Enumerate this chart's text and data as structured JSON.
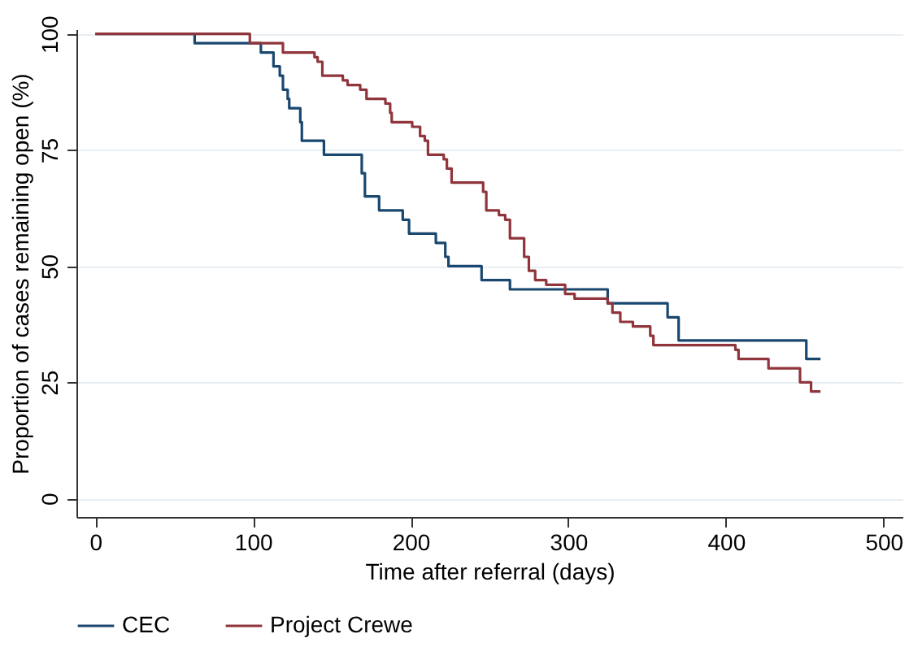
{
  "chart_data": {
    "type": "step",
    "xlabel": "Time after referral (days)",
    "ylabel": "Proportion of cases remaining open (%)",
    "xlim": [
      -12,
      512
    ],
    "xticks": [
      0,
      100,
      200,
      300,
      400,
      500
    ],
    "ylim": [
      -4,
      101
    ],
    "yticks": [
      0,
      25,
      50,
      75,
      100
    ],
    "grid": "y",
    "legend": "bottom left",
    "series": [
      {
        "name": "CEC",
        "color": "#1a476f",
        "x": [
          0,
          63,
          105,
          113,
          117,
          119,
          122,
          123,
          130,
          131,
          145,
          169,
          171,
          180,
          195,
          199,
          216,
          222,
          224,
          245,
          263,
          325,
          363,
          370,
          451,
          460
        ],
        "values": [
          100,
          98,
          96,
          93,
          91,
          88,
          86,
          84,
          81,
          77,
          74,
          70,
          65,
          62,
          60,
          57,
          55,
          52,
          50,
          47,
          45,
          42,
          39,
          34,
          30,
          30
        ]
      },
      {
        "name": "Project Crewe",
        "color": "#90353b",
        "x": [
          0,
          98,
          119,
          139,
          141,
          144,
          157,
          160,
          168,
          172,
          184,
          187,
          188,
          201,
          206,
          209,
          211,
          221,
          223,
          226,
          246,
          248,
          256,
          260,
          263,
          272,
          275,
          279,
          286,
          298,
          304,
          325,
          328,
          333,
          341,
          352,
          354,
          406,
          408,
          427,
          447,
          454,
          460
        ],
        "values": [
          100,
          98,
          96,
          95,
          94,
          91,
          90,
          89,
          88,
          86,
          85,
          83,
          81,
          80,
          78,
          77,
          74,
          73,
          71,
          68,
          66,
          62,
          61,
          60,
          56,
          52,
          49,
          47,
          46,
          44,
          43,
          42,
          40,
          38,
          37,
          35,
          33,
          32,
          30,
          28,
          25,
          23,
          23
        ]
      }
    ]
  }
}
